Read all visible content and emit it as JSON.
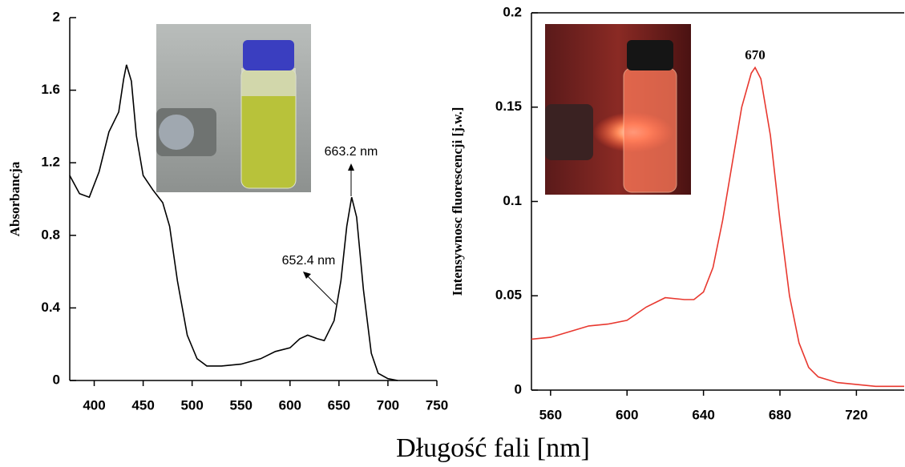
{
  "shared_xlabel": "Długość fali [nm]",
  "chart_data": [
    {
      "type": "line",
      "ylabel": "Absorbancja",
      "x": [
        375,
        385,
        395,
        405,
        415,
        425,
        430,
        433,
        438,
        443,
        450,
        460,
        470,
        477,
        485,
        495,
        505,
        515,
        530,
        550,
        570,
        585,
        600,
        610,
        618,
        628,
        635,
        645,
        652,
        658,
        663,
        668,
        675,
        683,
        690,
        700,
        710
      ],
      "series": [
        {
          "color": "#000000",
          "values": [
            1.13,
            1.03,
            1.01,
            1.15,
            1.37,
            1.48,
            1.66,
            1.74,
            1.65,
            1.35,
            1.13,
            1.05,
            0.98,
            0.85,
            0.55,
            0.25,
            0.12,
            0.08,
            0.08,
            0.09,
            0.12,
            0.16,
            0.18,
            0.23,
            0.25,
            0.23,
            0.22,
            0.33,
            0.55,
            0.85,
            1.01,
            0.9,
            0.5,
            0.15,
            0.04,
            0.01,
            0
          ]
        }
      ],
      "xlim": [
        375,
        750
      ],
      "xticks": [
        400,
        450,
        500,
        550,
        600,
        650,
        700,
        750
      ],
      "ylim": [
        0,
        2
      ],
      "yticks": [
        0,
        0.4,
        0.8,
        1.2,
        1.6,
        2
      ],
      "annotations": [
        "663.2 nm",
        "652.4 nm"
      ]
    },
    {
      "type": "line",
      "ylabel": "Intensywnosc fluorescencji [j.w.]",
      "x": [
        550,
        560,
        570,
        580,
        590,
        600,
        610,
        620,
        630,
        635,
        640,
        645,
        650,
        655,
        660,
        665,
        667,
        670,
        675,
        680,
        685,
        690,
        695,
        700,
        710,
        720,
        730,
        745
      ],
      "series": [
        {
          "color": "#e8382f",
          "values": [
            0.027,
            0.028,
            0.031,
            0.034,
            0.035,
            0.037,
            0.044,
            0.049,
            0.048,
            0.048,
            0.052,
            0.065,
            0.09,
            0.12,
            0.15,
            0.168,
            0.171,
            0.165,
            0.135,
            0.09,
            0.05,
            0.025,
            0.012,
            0.007,
            0.004,
            0.003,
            0.002,
            0.002
          ]
        }
      ],
      "xlim": [
        550,
        745
      ],
      "xticks": [
        560,
        600,
        640,
        680,
        720
      ],
      "ylim": [
        0,
        0.2
      ],
      "yticks": [
        0,
        0.05,
        0.1,
        0.15,
        0.2
      ],
      "annotations": [
        "670"
      ]
    }
  ]
}
